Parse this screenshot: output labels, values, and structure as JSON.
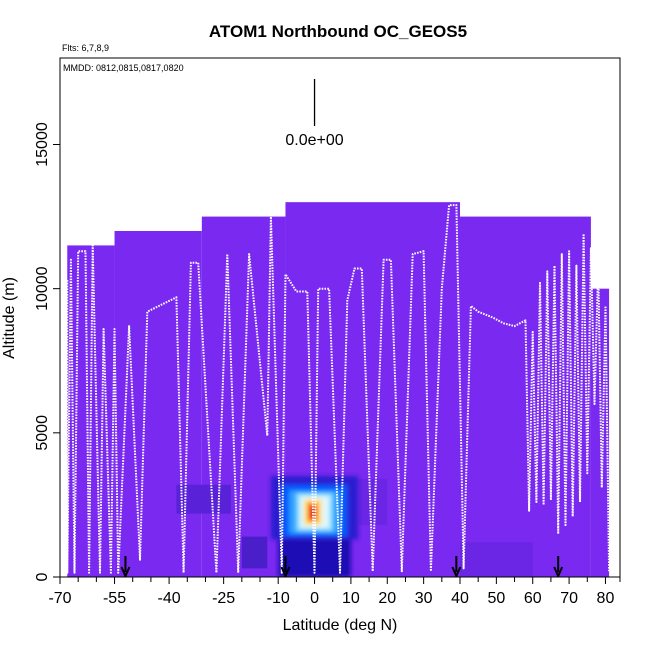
{
  "chart_data": {
    "type": "heatmap",
    "title": "ATOM1 Northbound OC_GEOS5",
    "subtitle_flights": "Flts: 6,7,8,9",
    "subtitle_dates": "MMDD: 0812,0815,0817,0820",
    "xlabel": "Latitude (deg N)",
    "ylabel": "Altitude (m)",
    "xlim": [
      -70,
      84
    ],
    "ylim": [
      0,
      18000
    ],
    "xticks": [
      {
        "value": -70,
        "label": "-70"
      },
      {
        "value": -55,
        "label": "-55"
      },
      {
        "value": -40,
        "label": "-40"
      },
      {
        "value": -25,
        "label": "-25"
      },
      {
        "value": -10,
        "label": "-10"
      },
      {
        "value": 0,
        "label": "0"
      },
      {
        "value": 10,
        "label": "10"
      },
      {
        "value": 20,
        "label": "20"
      },
      {
        "value": 30,
        "label": "30"
      },
      {
        "value": 40,
        "label": "40"
      },
      {
        "value": 50,
        "label": "50"
      },
      {
        "value": 60,
        "label": "60"
      },
      {
        "value": 70,
        "label": "70"
      },
      {
        "value": 80,
        "label": "80"
      }
    ],
    "minor_xticks": [
      -65,
      -60,
      -50,
      -45,
      -35,
      -30,
      -20,
      -15,
      -5,
      5,
      15,
      25,
      35,
      45,
      55,
      65,
      75,
      84
    ],
    "yticks": [
      {
        "value": 0,
        "label": "0"
      },
      {
        "value": 5000,
        "label": "5000"
      },
      {
        "value": 10000,
        "label": "10000"
      },
      {
        "value": 15000,
        "label": "15000"
      }
    ],
    "scale_marker_label": "0.0e+00",
    "scale_marker_lat": 0,
    "background_color": "#7a29f0",
    "heat_columns": [
      {
        "lat0": -68,
        "lat1": -55,
        "top": 11500
      },
      {
        "lat0": -55,
        "lat1": -31,
        "top": 12000
      },
      {
        "lat0": -31,
        "lat1": -8,
        "top": 12500
      },
      {
        "lat0": -8,
        "lat1": 40,
        "top": 13000
      },
      {
        "lat0": 40,
        "lat1": 76,
        "top": 12500
      },
      {
        "lat0": 76,
        "lat1": 81,
        "top": 10000
      }
    ],
    "hotspot": {
      "center_lat": -1,
      "center_alt": 2200,
      "cells": [
        {
          "lat0": -10,
          "lat1": 10,
          "alt0": 0,
          "alt1": 1300,
          "color": "#1a0fb4"
        },
        {
          "lat0": -12,
          "lat1": 12,
          "alt0": 1300,
          "alt1": 3500,
          "color": "#2a1fd0"
        },
        {
          "lat0": -9,
          "lat1": 9,
          "alt0": 1400,
          "alt1": 3200,
          "color": "#0059ff"
        },
        {
          "lat0": -7,
          "lat1": 7,
          "alt0": 1500,
          "alt1": 3000,
          "color": "#2fa0ff"
        },
        {
          "lat0": -5,
          "lat1": 5,
          "alt0": 1600,
          "alt1": 2900,
          "color": "#8de0ff"
        },
        {
          "lat0": -4,
          "lat1": 4,
          "alt0": 1700,
          "alt1": 2800,
          "color": "#e0f6ff"
        },
        {
          "lat0": -3,
          "lat1": 2,
          "alt0": 1800,
          "alt1": 2700,
          "color": "#ffe37a"
        },
        {
          "lat0": -2,
          "lat1": 1,
          "alt0": 1900,
          "alt1": 2600,
          "color": "#ff9a2a"
        },
        {
          "lat0": -1.5,
          "lat1": 0.5,
          "alt0": 2000,
          "alt1": 2500,
          "color": "#e8261a"
        }
      ]
    },
    "dark_patches": [
      {
        "lat0": -38,
        "lat1": -23,
        "alt0": 2200,
        "alt1": 3200,
        "color": "#5a22d8"
      },
      {
        "lat0": -20,
        "lat1": -13,
        "alt0": 300,
        "alt1": 1400,
        "color": "#4a1ec8"
      },
      {
        "lat0": 12,
        "lat1": 20,
        "alt0": 1800,
        "alt1": 3400,
        "color": "#6a26e4"
      },
      {
        "lat0": 40,
        "lat1": 60,
        "alt0": 0,
        "alt1": 1200,
        "color": "#6a26e4"
      }
    ],
    "flight_track": [
      [
        -68,
        10300
      ],
      [
        -68,
        150
      ],
      [
        -67,
        11000
      ],
      [
        -66,
        150
      ],
      [
        -65,
        11300
      ],
      [
        -63,
        11300
      ],
      [
        -62,
        150
      ],
      [
        -61,
        11500
      ],
      [
        -59,
        150
      ],
      [
        -58,
        8600
      ],
      [
        -56,
        150
      ],
      [
        -55,
        8600
      ],
      [
        -54,
        150
      ],
      [
        -51,
        8700
      ],
      [
        -48,
        600
      ],
      [
        -46,
        9200
      ],
      [
        -38,
        9700
      ],
      [
        -36,
        150
      ],
      [
        -34,
        10900
      ],
      [
        -32,
        10900
      ],
      [
        -27,
        150
      ],
      [
        -24,
        11200
      ],
      [
        -21,
        150
      ],
      [
        -18,
        11200
      ],
      [
        -13,
        4900
      ],
      [
        -12,
        12500
      ],
      [
        -9,
        150
      ],
      [
        -8,
        10500
      ],
      [
        -5,
        9900
      ],
      [
        -2,
        9900
      ],
      [
        0,
        150
      ],
      [
        1,
        10000
      ],
      [
        4,
        10000
      ],
      [
        7,
        150
      ],
      [
        9,
        9600
      ],
      [
        11,
        10700
      ],
      [
        13,
        10700
      ],
      [
        16,
        200
      ],
      [
        19,
        11000
      ],
      [
        21,
        11000
      ],
      [
        24,
        200
      ],
      [
        27,
        11200
      ],
      [
        30,
        11300
      ],
      [
        32,
        200
      ],
      [
        35,
        10000
      ],
      [
        37,
        12900
      ],
      [
        39,
        12900
      ],
      [
        41,
        300
      ],
      [
        43,
        9400
      ],
      [
        45,
        9200
      ],
      [
        47,
        9100
      ],
      [
        49,
        9000
      ],
      [
        52,
        8800
      ],
      [
        55,
        8700
      ],
      [
        58,
        8900
      ],
      [
        59,
        2300
      ],
      [
        60,
        8500
      ],
      [
        61,
        2600
      ],
      [
        62,
        10200
      ],
      [
        63,
        2500
      ],
      [
        64,
        10600
      ],
      [
        65,
        2700
      ],
      [
        66,
        10800
      ],
      [
        67,
        1500
      ],
      [
        68,
        11200
      ],
      [
        69,
        1800
      ],
      [
        70,
        11300
      ],
      [
        71,
        2100
      ],
      [
        72,
        10800
      ],
      [
        73,
        2600
      ],
      [
        74,
        11900
      ],
      [
        75,
        3600
      ],
      [
        76,
        11400
      ],
      [
        77,
        6000
      ],
      [
        78,
        10800
      ],
      [
        79,
        3100
      ],
      [
        80,
        9400
      ],
      [
        81,
        200
      ]
    ],
    "arrow_lats": [
      -52,
      -8,
      39,
      67
    ],
    "arrow_color": "#000000",
    "track_color": "#ffffff"
  }
}
